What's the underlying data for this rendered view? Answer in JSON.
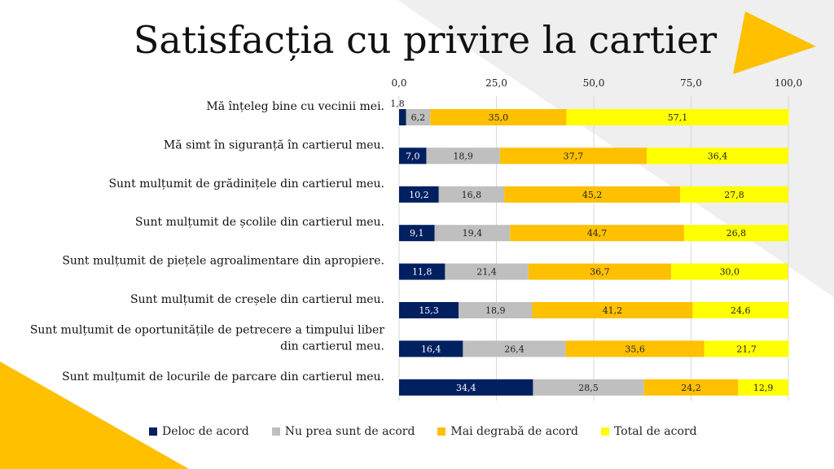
{
  "page": {
    "title": "Satisfacția cu privire la cartier"
  },
  "colors": {
    "accent_yellow": "#FFC000",
    "decor_gray": "#EFEFEF",
    "series": [
      "#002060",
      "#BFBFBF",
      "#FFC000",
      "#FFFF00"
    ]
  },
  "chart_data": {
    "type": "bar",
    "orientation": "horizontal",
    "stacked": true,
    "title": "Satisfacția cu privire la cartier",
    "xlim": [
      0,
      100
    ],
    "xticks": [
      "0,0",
      "25,0",
      "50,0",
      "75,0",
      "100,0"
    ],
    "grid": true,
    "legend": "bottom",
    "categories": [
      [
        "Mă înțeleg bine cu vecinii mei."
      ],
      [
        "Mă simt în siguranță în cartierul meu."
      ],
      [
        "Sunt mulțumit de grădinițele din cartierul meu."
      ],
      [
        "Sunt mulțumit de școlile din cartierul meu."
      ],
      [
        "Sunt mulțumit de piețele agroalimentare din apropiere."
      ],
      [
        "Sunt mulțumit de creșele din cartierul meu."
      ],
      [
        "Sunt mulțumit de oportunitățile de petrecere a timpului liber",
        "din cartierul meu."
      ],
      [
        "Sunt mulțumit de locurile de parcare din cartierul meu."
      ]
    ],
    "series": [
      {
        "name": "Deloc de acord",
        "values": [
          1.8,
          7.0,
          10.2,
          9.1,
          11.8,
          15.3,
          16.4,
          34.4
        ],
        "labels": [
          "1,8",
          "7,0",
          "10,2",
          "9,1",
          "11,8",
          "15,3",
          "16,4",
          "34,4"
        ]
      },
      {
        "name": "Nu prea sunt de acord",
        "values": [
          6.2,
          18.9,
          16.8,
          19.4,
          21.4,
          18.9,
          26.4,
          28.5
        ],
        "labels": [
          "6,2",
          "18,9",
          "16,8",
          "19,4",
          "21,4",
          "18,9",
          "26,4",
          "28,5"
        ]
      },
      {
        "name": "Mai degrabă de acord",
        "values": [
          35.0,
          37.7,
          45.2,
          44.7,
          36.7,
          41.2,
          35.6,
          24.2
        ],
        "labels": [
          "35,0",
          "37,7",
          "45,2",
          "44,7",
          "36,7",
          "41,2",
          "35,6",
          "24,2"
        ]
      },
      {
        "name": "Total de acord",
        "values": [
          57.1,
          36.4,
          27.8,
          26.8,
          30.0,
          24.6,
          21.7,
          12.9
        ],
        "labels": [
          "57,1",
          "36,4",
          "27,8",
          "26,8",
          "30,0",
          "24,6",
          "21,7",
          "12,9"
        ]
      }
    ]
  }
}
